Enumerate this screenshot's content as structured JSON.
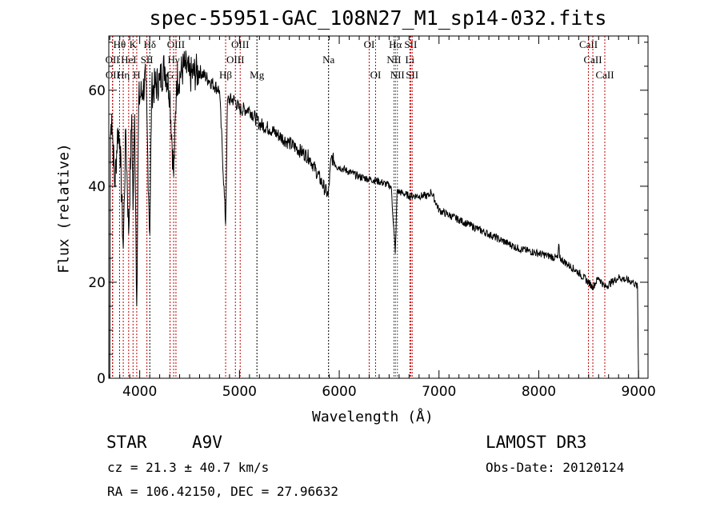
{
  "chart_data": {
    "type": "line",
    "title": "spec-55951-GAC_108N27_M1_sp14-032.fits",
    "xlabel": "Wavelength (Å)",
    "ylabel": "Flux (relative)",
    "xlim": [
      3690,
      9095
    ],
    "ylim": [
      0,
      71.3
    ],
    "xticks": [
      4000,
      5000,
      6000,
      7000,
      8000,
      9000
    ],
    "yticks": [
      0,
      20,
      40,
      60
    ],
    "grid": false,
    "series": [
      {
        "name": "spectrum",
        "x": [
          3700,
          3705,
          3720,
          3750,
          3780,
          3800,
          3835,
          3860,
          3889,
          3920,
          3933,
          3950,
          3970,
          3990,
          4030,
          4060,
          4101,
          4120,
          4200,
          4250,
          4300,
          4340,
          4370,
          4450,
          4500,
          4600,
          4700,
          4800,
          4861,
          4880,
          4950,
          5000,
          5100,
          5200,
          5300,
          5500,
          5700,
          5890,
          5920,
          6000,
          6200,
          6400,
          6520,
          6562,
          6580,
          6700,
          6900,
          6920,
          7000,
          7200,
          7400,
          7600,
          7800,
          8000,
          8190,
          8200,
          8210,
          8400,
          8498,
          8542,
          8600,
          8662,
          8800,
          8950,
          8990,
          9000
        ],
        "y": [
          0,
          50,
          55,
          40,
          52,
          50,
          27,
          52,
          30,
          55,
          35,
          55,
          15,
          58,
          60,
          62,
          30,
          60,
          62,
          65,
          60,
          42,
          62,
          65,
          63,
          64,
          62,
          60,
          32,
          58,
          58,
          56,
          56,
          53,
          52,
          49,
          46,
          38,
          46,
          44,
          42,
          41,
          40,
          26,
          39,
          38,
          38,
          39,
          35,
          33,
          31,
          29,
          27,
          26,
          25,
          28,
          25,
          22,
          20,
          19,
          21,
          19,
          21,
          20,
          19,
          0
        ]
      }
    ],
    "lines": [
      {
        "w": 3798,
        "label": "Hθ",
        "row": 1,
        "c": "#c00000"
      },
      {
        "w": 3933,
        "label": "K",
        "row": 1,
        "c": "#c00000"
      },
      {
        "w": 4101,
        "label": "Hδ",
        "row": 1,
        "c": "#000000"
      },
      {
        "w": 4363,
        "label": "OIII",
        "row": 1,
        "c": "#c00000"
      },
      {
        "w": 5007,
        "label": "OIII",
        "row": 1,
        "c": "#c00000"
      },
      {
        "w": 6300,
        "label": "OI",
        "row": 1,
        "c": "#c00000"
      },
      {
        "w": 6563,
        "label": "Hα",
        "row": 1,
        "c": "#555555"
      },
      {
        "w": 6716,
        "label": "SII",
        "row": 1,
        "c": "#c00000"
      },
      {
        "w": 8498,
        "label": "CaII",
        "row": 1,
        "c": "#c00000"
      },
      {
        "w": 3727,
        "label": "OII",
        "row": 2,
        "c": "#c00000"
      },
      {
        "w": 3889,
        "label": "HeI",
        "row": 2,
        "c": "#c00000"
      },
      {
        "w": 4072,
        "label": "SII",
        "row": 2,
        "c": "#c00000"
      },
      {
        "w": 4340,
        "label": "Hγ",
        "row": 2,
        "c": "#c00000"
      },
      {
        "w": 4959,
        "label": "OIII",
        "row": 2,
        "c": "#c00000"
      },
      {
        "w": 5893,
        "label": "Na",
        "row": 2,
        "c": "#000000"
      },
      {
        "w": 6548,
        "label": "NII",
        "row": 2,
        "c": "#555555"
      },
      {
        "w": 6708,
        "label": "Li",
        "row": 2,
        "c": "#c00000"
      },
      {
        "w": 8542,
        "label": "CaII",
        "row": 2,
        "c": "#c00000"
      },
      {
        "w": 3729,
        "label": "OII",
        "row": 3,
        "c": "#c00000"
      },
      {
        "w": 3835,
        "label": "Hη",
        "row": 3,
        "c": "#c00000"
      },
      {
        "w": 3970,
        "label": "H",
        "row": 3,
        "c": "#c00000"
      },
      {
        "w": 4304,
        "label": "G",
        "row": 3,
        "c": "#c00000"
      },
      {
        "w": 4861,
        "label": "Hβ",
        "row": 3,
        "c": "#c00000"
      },
      {
        "w": 5175,
        "label": "Mg",
        "row": 3,
        "c": "#000000"
      },
      {
        "w": 6364,
        "label": "OI",
        "row": 3,
        "c": "#c00000"
      },
      {
        "w": 6583,
        "label": "NII",
        "row": 3,
        "c": "#555555"
      },
      {
        "w": 6731,
        "label": "SII",
        "row": 3,
        "c": "#c00000"
      },
      {
        "w": 8662,
        "label": "CaII",
        "row": 3,
        "c": "#c00000"
      }
    ]
  },
  "info": {
    "class": "STAR",
    "subclass": "A9V",
    "survey": "LAMOST DR3",
    "cz": "cz = 21.3 ± 40.7 km/s",
    "obsdate": "Obs-Date: 20120124",
    "radec": "RA = 106.42150, DEC =  27.96632"
  }
}
